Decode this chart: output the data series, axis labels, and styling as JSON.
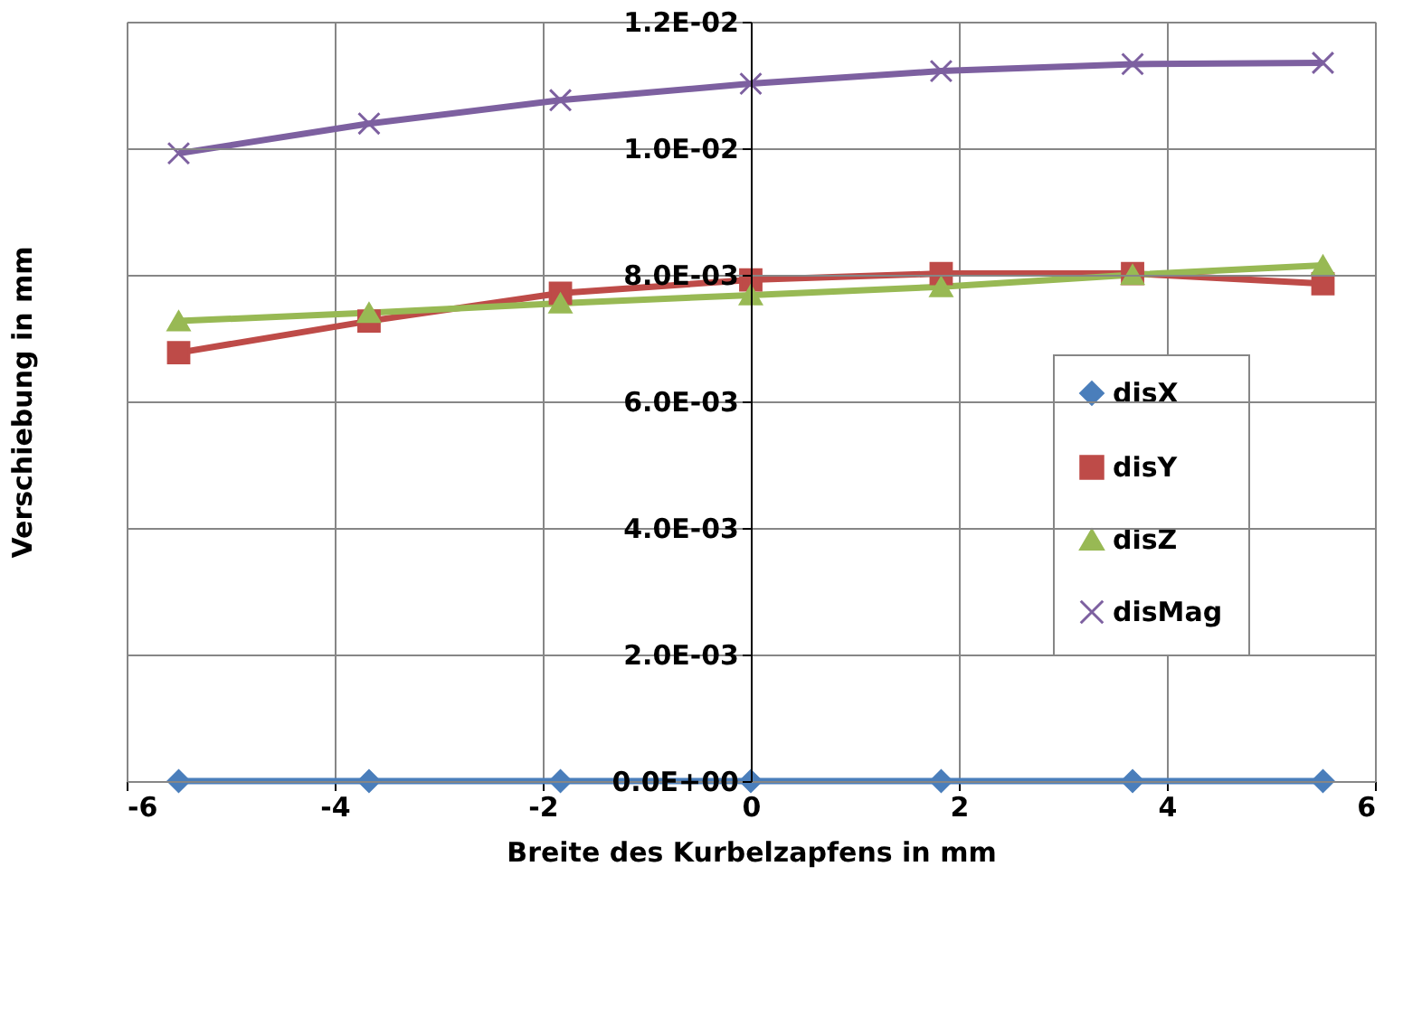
{
  "chart_data": {
    "type": "line",
    "xlabel": "Breite des Kurbelzapfens in mm",
    "ylabel": "Verschiebung in mm",
    "x": [
      -5.5,
      -3.67,
      -1.83,
      0,
      1.83,
      3.67,
      5.5
    ],
    "series": [
      {
        "name": "disX",
        "color": "#4a7ebb",
        "marker": "diamond",
        "values": [
          0,
          0,
          0,
          0,
          0,
          0,
          0
        ]
      },
      {
        "name": "disY",
        "color": "#be4b48",
        "marker": "square",
        "values": [
          0.00677,
          0.00727,
          0.00771,
          0.00792,
          0.00802,
          0.00802,
          0.00786
        ]
      },
      {
        "name": "disZ",
        "color": "#98b954",
        "marker": "triangle",
        "values": [
          0.00727,
          0.0074,
          0.00755,
          0.00768,
          0.00781,
          0.008,
          0.00815
        ]
      },
      {
        "name": "disMag",
        "color": "#7d60a0",
        "marker": "cross",
        "values": [
          0.00992,
          0.01039,
          0.01076,
          0.01102,
          0.01122,
          0.01133,
          0.01135
        ]
      }
    ],
    "xlim": [
      -6,
      6
    ],
    "xticks": [
      -6,
      -4,
      -2,
      0,
      2,
      4,
      6
    ],
    "ylim": [
      0,
      0.012
    ],
    "yticks": [
      {
        "value": 0,
        "label": "0.0E+00"
      },
      {
        "value": 0.002,
        "label": "2.0E-03"
      },
      {
        "value": 0.004,
        "label": "4.0E-03"
      },
      {
        "value": 0.006,
        "label": "6.0E-03"
      },
      {
        "value": 0.008,
        "label": "8.0E-03"
      },
      {
        "value": 0.01,
        "label": "1.0E-02"
      },
      {
        "value": 0.012,
        "label": "1.2E-02"
      }
    ],
    "grid": true,
    "legend": "bottom right",
    "line_style": "solid"
  }
}
